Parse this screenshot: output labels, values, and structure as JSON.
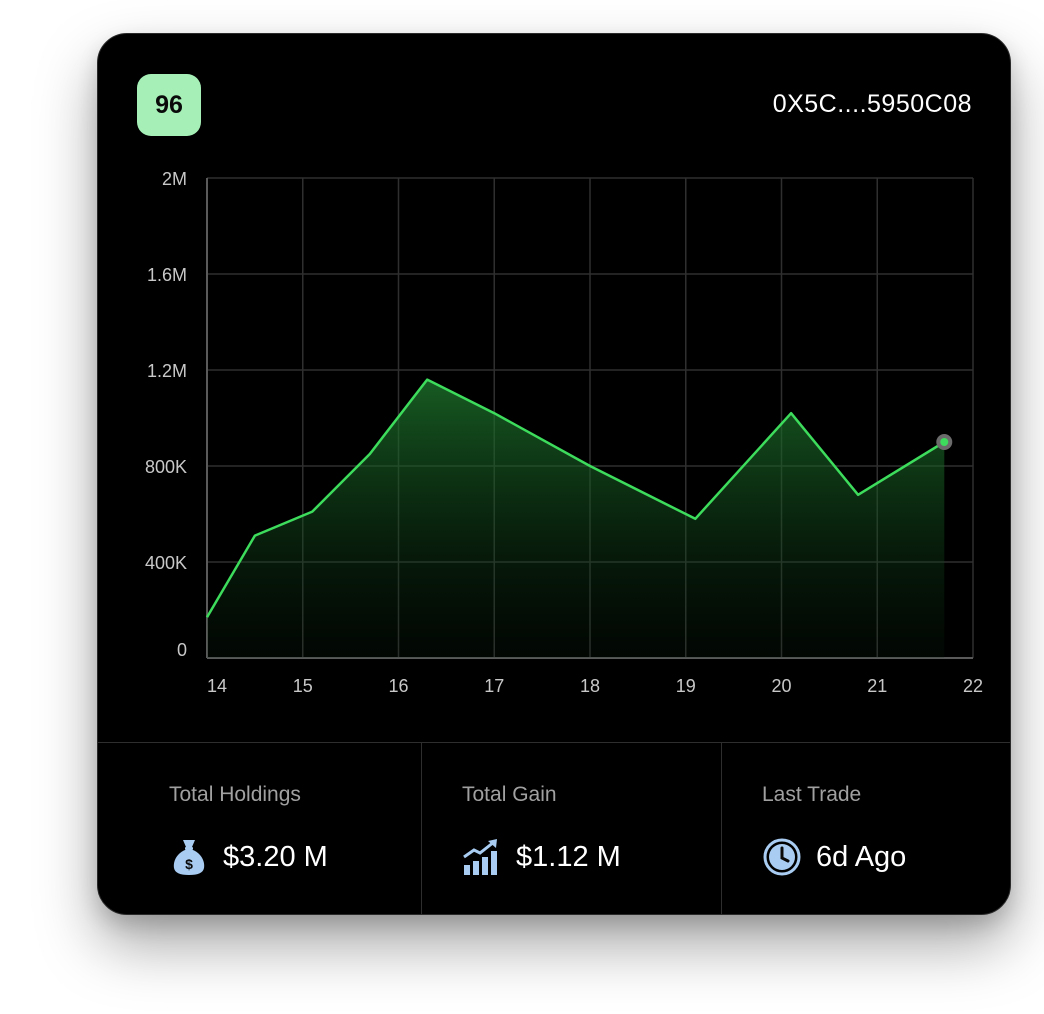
{
  "header": {
    "score": "96",
    "wallet_address": "0X5C....5950C08"
  },
  "colors": {
    "accent": "#3ddc5c",
    "badge_bg": "#a6f0b8",
    "icon_blue": "#a9cdf2",
    "grid": "#2f2f2f"
  },
  "chart_data": {
    "type": "area",
    "x_ticks": [
      "14",
      "15",
      "16",
      "17",
      "18",
      "19",
      "20",
      "21",
      "22"
    ],
    "y_ticks": [
      "0",
      "400K",
      "800K",
      "1.2M",
      "1.6M",
      "2M"
    ],
    "ylim": [
      0,
      2000000
    ],
    "xlim": [
      14,
      22
    ],
    "series": [
      {
        "x": [
          14.0,
          14.5,
          15.1,
          15.7,
          16.3,
          17.0,
          18.0,
          19.1,
          20.1,
          20.8,
          21.7
        ],
        "y": [
          170000,
          510000,
          610000,
          850000,
          1160000,
          1020000,
          800000,
          580000,
          1020000,
          680000,
          900000
        ]
      }
    ],
    "grid": true,
    "last_point_marker": true
  },
  "stats": [
    {
      "label": "Total Holdings",
      "value": "$3.20 M",
      "icon": "money-bag-icon"
    },
    {
      "label": "Total Gain",
      "value": "$1.12 M",
      "icon": "growth-chart-icon"
    },
    {
      "label": "Last Trade",
      "value": "6d Ago",
      "icon": "clock-icon"
    }
  ]
}
